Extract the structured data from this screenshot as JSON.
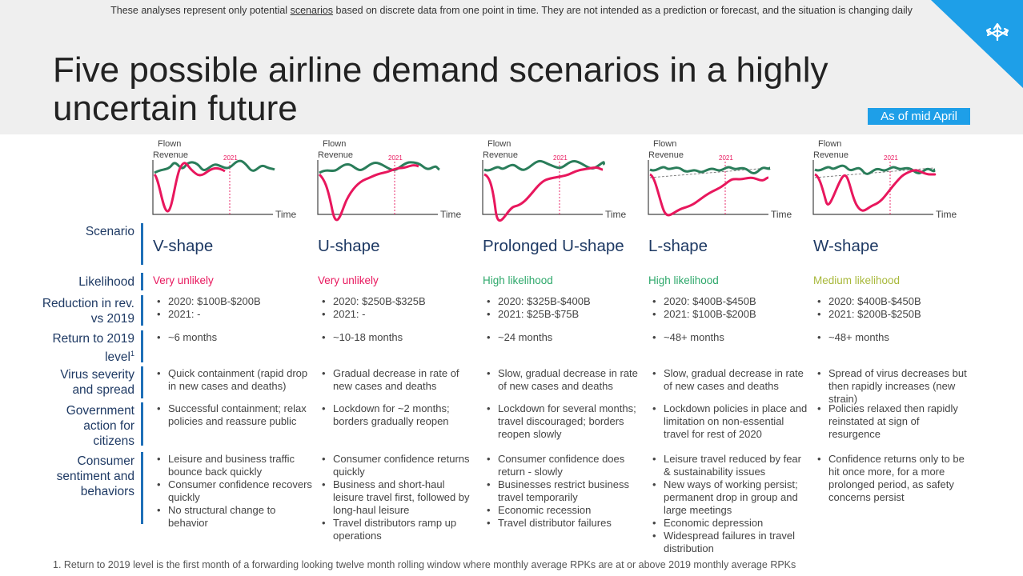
{
  "disclaimer": {
    "before": "These analyses represent only potential ",
    "link": "scenarios",
    "after": " based on discrete data from one point in time. They are not intended as a prediction or forecast, and the situation is changing daily"
  },
  "title": "Five possible airline demand scenarios in a highly uncertain future",
  "as_of": "As of mid April",
  "colors": {
    "accent": "#1e9fe8",
    "label_navy": "#1f3a64",
    "green_line": "#2a7d5a",
    "pink_line": "#e8175d"
  },
  "row_labels": {
    "scenario": "Scenario",
    "likelihood": "Likelihood",
    "reduction": "Reduction in rev. vs 2019",
    "return_text": "Return to 2019 level",
    "return_sup": "1",
    "virus": "Virus severity and spread",
    "government": "Government action for citizens",
    "consumer": "Consumer sentiment and behaviors"
  },
  "chart_labels": {
    "y_label_1": "Flown",
    "y_label_2": "Revenue",
    "x_label": "Time",
    "marker_year": "2021"
  },
  "scenarios": [
    {
      "name": "V-shape",
      "likelihood": "Very unlikely",
      "likelihood_color": "#e8175d",
      "reduction": [
        "2020: $100B-$200B",
        "2021: -"
      ],
      "return": [
        "~6 months"
      ],
      "virus": [
        "Quick containment (rapid drop in new cases and deaths)"
      ],
      "government": [
        "Successful containment; relax policies and reassure public"
      ],
      "consumer": [
        "Leisure and business traffic bounce back quickly",
        "Consumer confidence recovers quickly",
        "No structural change to behavior"
      ]
    },
    {
      "name": "U-shape",
      "likelihood": "Very unlikely",
      "likelihood_color": "#e8175d",
      "reduction": [
        "2020: $250B-$325B",
        "2021: -"
      ],
      "return": [
        "~10-18 months"
      ],
      "virus": [
        "Gradual decrease in rate of new cases and deaths"
      ],
      "government": [
        "Lockdown for ~2 months; borders gradually reopen"
      ],
      "consumer": [
        "Consumer confidence returns quickly",
        "Business and short-haul leisure travel first, followed by long-haul leisure",
        "Travel distributors ramp up operations"
      ]
    },
    {
      "name": "Prolonged U-shape",
      "likelihood": "High likelihood",
      "likelihood_color": "#2ea86b",
      "reduction": [
        "2020: $325B-$400B",
        "2021: $25B-$75B"
      ],
      "return": [
        "~24 months"
      ],
      "virus": [
        "Slow, gradual decrease in rate of new cases and deaths"
      ],
      "government": [
        "Lockdown for several months; travel discouraged; borders reopen slowly"
      ],
      "consumer": [
        "Consumer confidence does return - slowly",
        "Businesses restrict business travel temporarily",
        "Economic recession",
        "Travel distributor failures"
      ]
    },
    {
      "name": "L-shape",
      "likelihood": "High likelihood",
      "likelihood_color": "#2ea86b",
      "reduction": [
        "2020: $400B-$450B",
        "2021: $100B-$200B"
      ],
      "return": [
        "~48+ months"
      ],
      "virus": [
        "Slow, gradual decrease in rate of new cases and deaths"
      ],
      "government": [
        "Lockdown policies in place and limitation on non-essential travel for rest of 2020"
      ],
      "consumer": [
        "Leisure travel reduced by fear & sustainability issues",
        "New ways of working persist; permanent drop in group and large meetings",
        "Economic depression",
        "Widespread failures in travel distribution"
      ]
    },
    {
      "name": "W-shape",
      "likelihood": "Medium likelihood",
      "likelihood_color": "#a8b83a",
      "reduction": [
        "2020: $400B-$450B",
        "2021: $200B-$250B"
      ],
      "return": [
        "~48+ months"
      ],
      "virus": [
        "Spread of virus decreases but then rapidly increases (new strain)"
      ],
      "government": [
        "Policies relaxed then rapidly reinstated at sign of resurgence"
      ],
      "consumer": [
        "Confidence returns only to be hit once more, for a more prolonged period, as safety concerns persist"
      ]
    }
  ],
  "footnote": "1. Return to 2019 level is the first month of a forwarding looking twelve month rolling window where monthly average RPKs are at or above 2019 monthly average RPKs"
}
